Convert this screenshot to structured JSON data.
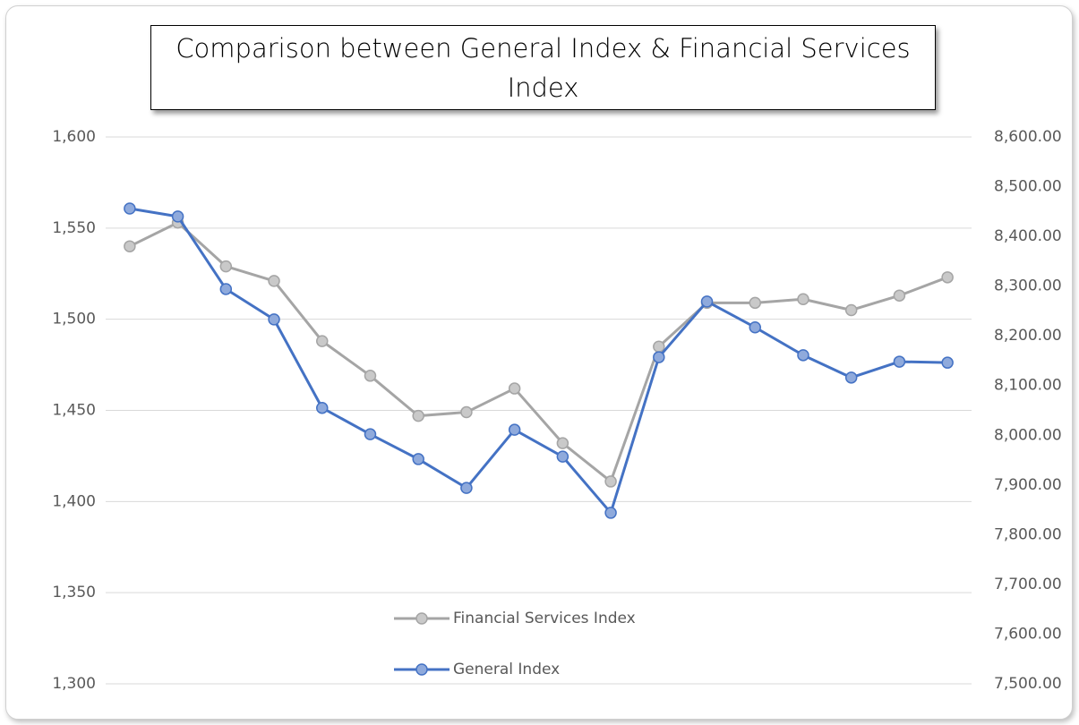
{
  "chart_data": {
    "type": "line",
    "title": "Comparison between General Index & Financial Services Index",
    "categories": [
      null,
      null,
      null,
      null,
      null,
      null,
      null,
      null,
      null,
      null,
      null,
      null,
      null,
      null,
      null,
      null,
      null,
      null
    ],
    "series": [
      {
        "name": "Financial Services Index",
        "color": "#a5a5a5",
        "axis": "y",
        "values": [
          1540,
          1553,
          1529,
          1521,
          1488,
          1469,
          1447,
          1449,
          1462,
          1432,
          1411,
          1485,
          1509,
          1509,
          1511,
          1505,
          1513,
          1523
        ]
      },
      {
        "name": "General Index",
        "color": "#4472c4",
        "axis": "y2",
        "values": [
          8456,
          8440,
          8294,
          8233,
          8055,
          8002,
          7952,
          7894,
          8011,
          7957,
          7844,
          8157,
          8269,
          8217,
          8161,
          8116,
          8148,
          8146
        ]
      }
    ],
    "ylim": [
      1300,
      1600
    ],
    "yticks": [
      {
        "value": 1300,
        "label": "1,300"
      },
      {
        "value": 1350,
        "label": "1,350"
      },
      {
        "value": 1400,
        "label": "1,400"
      },
      {
        "value": 1450,
        "label": "1,450"
      },
      {
        "value": 1500,
        "label": "1,500"
      },
      {
        "value": 1550,
        "label": "1,550"
      },
      {
        "value": 1600,
        "label": "1,600"
      }
    ],
    "y2lim": [
      7500,
      8600
    ],
    "y2ticks": [
      {
        "value": 7500,
        "label": "7,500.00"
      },
      {
        "value": 7600,
        "label": "7,600.00"
      },
      {
        "value": 7700,
        "label": "7,700.00"
      },
      {
        "value": 7800,
        "label": "7,800.00"
      },
      {
        "value": 7900,
        "label": "7,900.00"
      },
      {
        "value": 8000,
        "label": "8,000.00"
      },
      {
        "value": 8100,
        "label": "8,100.00"
      },
      {
        "value": 8200,
        "label": "8,200.00"
      },
      {
        "value": 8300,
        "label": "8,300.00"
      },
      {
        "value": 8400,
        "label": "8,400.00"
      },
      {
        "value": 8500,
        "label": "8,500.00"
      },
      {
        "value": 8600,
        "label": "8,600.00"
      }
    ],
    "grid": true,
    "legend": "bottom"
  }
}
